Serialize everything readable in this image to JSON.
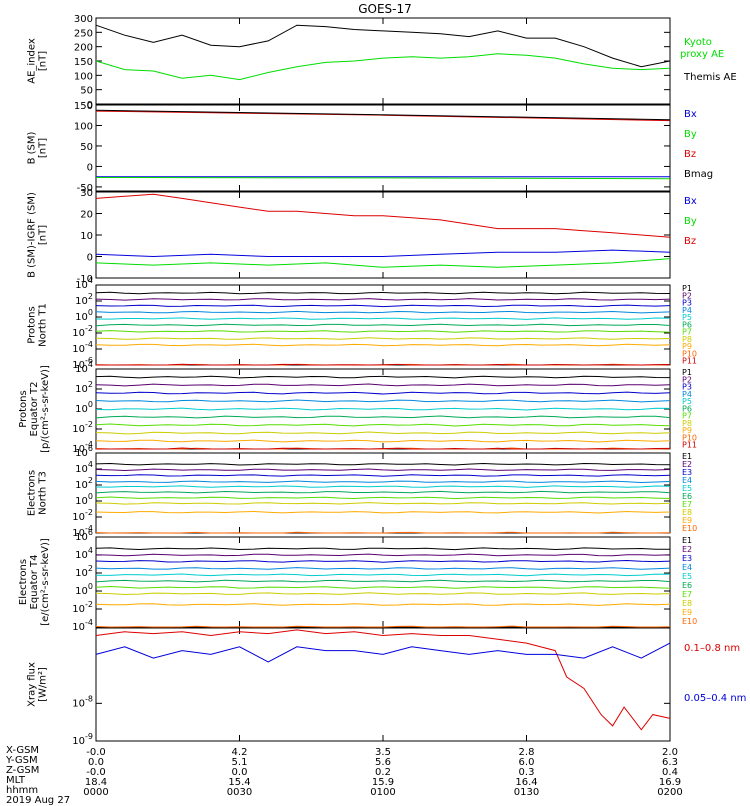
{
  "title": "GOES-17",
  "date": "2019 Aug 27",
  "colors": {
    "black": "#000000",
    "green": "#00dd00",
    "red": "#dd0000",
    "blue": "#0000dd",
    "proton": [
      "#000000",
      "#5a0070",
      "#0000cc",
      "#0088dd",
      "#00cccc",
      "#00aa55",
      "#55dd00",
      "#cccc00",
      "#ffaa00",
      "#ff6600",
      "#cc0000"
    ]
  },
  "x_axis": {
    "ticks": [
      "0000",
      "0030",
      "0100",
      "0130",
      "0200"
    ],
    "rows": [
      {
        "label": "X-GSM",
        "values": [
          "-0.0",
          "4.2",
          "3.5",
          "2.8",
          "2.0"
        ]
      },
      {
        "label": "Y-GSM",
        "values": [
          "0.0",
          "5.1",
          "5.6",
          "6.0",
          "6.3"
        ]
      },
      {
        "label": "Z-GSM",
        "values": [
          "-0.0",
          "0.0",
          "0.2",
          "0.3",
          "0.4"
        ]
      },
      {
        "label": "MLT",
        "values": [
          "18.4",
          "15.4",
          "15.9",
          "16.4",
          "16.9"
        ]
      },
      {
        "label": "hhmm",
        "values": [
          "0000",
          "0030",
          "0100",
          "0130",
          "0200"
        ]
      }
    ]
  },
  "chart_data": [
    {
      "type": "line",
      "ylabel": "AE_index\n[nT]",
      "ylim": [
        0,
        300
      ],
      "scale": "linear",
      "yticks": [
        "0",
        "50",
        "100",
        "150",
        "200",
        "250",
        "300"
      ],
      "legend": [
        "Kyoto proxy AE",
        "Themis AE"
      ],
      "series": [
        {
          "name": "Themis AE",
          "color": "black",
          "x": [
            0,
            0.05,
            0.1,
            0.15,
            0.2,
            0.25,
            0.3,
            0.35,
            0.4,
            0.45,
            0.5,
            0.55,
            0.6,
            0.65,
            0.7,
            0.75,
            0.8,
            0.85,
            0.9,
            0.95,
            1
          ],
          "values": [
            275,
            240,
            215,
            240,
            205,
            200,
            220,
            275,
            270,
            260,
            255,
            250,
            245,
            235,
            255,
            230,
            230,
            200,
            160,
            130,
            150
          ]
        },
        {
          "name": "Kyoto proxy AE",
          "color": "green",
          "x": [
            0,
            0.05,
            0.1,
            0.15,
            0.2,
            0.25,
            0.3,
            0.35,
            0.4,
            0.45,
            0.5,
            0.55,
            0.6,
            0.65,
            0.7,
            0.75,
            0.8,
            0.85,
            0.9,
            0.95,
            1
          ],
          "values": [
            150,
            120,
            115,
            90,
            100,
            85,
            110,
            130,
            145,
            150,
            160,
            165,
            160,
            165,
            175,
            170,
            160,
            140,
            125,
            120,
            125
          ]
        }
      ]
    },
    {
      "type": "line",
      "ylabel": "B (SM)\n[nT]",
      "ylim": [
        -60,
        150
      ],
      "scale": "linear",
      "yticks": [
        "-50",
        "0",
        "50",
        "100",
        "150"
      ],
      "legend": [
        "Bx",
        "By",
        "Bz",
        "Bmag"
      ],
      "series": [
        {
          "name": "Bz",
          "color": "red",
          "x": [
            0,
            0.5,
            1
          ],
          "values": [
            135,
            125,
            112
          ]
        },
        {
          "name": "Bmag",
          "color": "black",
          "x": [
            0,
            0.5,
            1
          ],
          "values": [
            137,
            126,
            114
          ]
        },
        {
          "name": "Bx",
          "color": "blue",
          "x": [
            0,
            0.5,
            1
          ],
          "values": [
            -25,
            -25,
            -25
          ]
        },
        {
          "name": "By",
          "color": "green",
          "x": [
            0,
            0.5,
            1
          ],
          "values": [
            -27,
            -28,
            -30
          ]
        }
      ]
    },
    {
      "type": "line",
      "ylabel": "B (SM)-IGRF (SM)\n[nT]",
      "ylim": [
        -10,
        30
      ],
      "scale": "linear",
      "yticks": [
        "-10",
        "0",
        "10",
        "20",
        "30"
      ],
      "legend": [
        "Bx",
        "By",
        "Bz"
      ],
      "series": [
        {
          "name": "Bz",
          "color": "red",
          "x": [
            0,
            0.05,
            0.1,
            0.15,
            0.2,
            0.25,
            0.3,
            0.35,
            0.4,
            0.45,
            0.5,
            0.55,
            0.6,
            0.65,
            0.7,
            0.75,
            0.8,
            0.85,
            0.9,
            0.95,
            1
          ],
          "values": [
            27,
            28,
            29,
            27,
            25,
            23,
            21,
            21,
            20,
            19,
            19,
            18,
            17,
            15,
            13,
            13,
            13,
            12,
            11,
            10,
            9
          ]
        },
        {
          "name": "Bx",
          "color": "blue",
          "x": [
            0,
            0.1,
            0.2,
            0.3,
            0.4,
            0.5,
            0.6,
            0.7,
            0.8,
            0.9,
            1
          ],
          "values": [
            1,
            0,
            1,
            0,
            0,
            0,
            1,
            2,
            2,
            3,
            2
          ]
        },
        {
          "name": "By",
          "color": "green",
          "x": [
            0,
            0.1,
            0.2,
            0.3,
            0.4,
            0.5,
            0.6,
            0.7,
            0.8,
            0.9,
            1
          ],
          "values": [
            -3,
            -4,
            -3,
            -4,
            -3,
            -5,
            -4,
            -5,
            -4,
            -3,
            -1
          ]
        }
      ]
    },
    {
      "type": "line",
      "ylabel": "Protons\nNorth T1",
      "ylim": [
        -6,
        4
      ],
      "scale": "log",
      "yticks": [
        "10^-6",
        "10^-4",
        "10^-2",
        "10^0",
        "10^2",
        "10^4"
      ],
      "legend": [
        "P1",
        "P2",
        "P3",
        "P4",
        "P5",
        "P6",
        "P7",
        "P8",
        "P9",
        "P10",
        "P11"
      ],
      "levels": [
        3.0,
        2.2,
        1.4,
        0.6,
        -0.2,
        -1.0,
        -1.8,
        -2.7,
        -3.5,
        -6.0,
        -6.0
      ]
    },
    {
      "type": "line",
      "ylabel": "Protons\nEquator T2\n[p/(cm²-s-sr-keV)]",
      "ylim": [
        -4,
        4
      ],
      "scale": "log",
      "yticks": [
        "10^-4",
        "10^-2",
        "10^0",
        "10^2",
        "10^4"
      ],
      "legend": [
        "P1",
        "P2",
        "P3",
        "P4",
        "P5",
        "P6",
        "P7",
        "P8",
        "P9",
        "P10",
        "P11"
      ],
      "levels": [
        3.2,
        2.4,
        1.6,
        0.8,
        0.0,
        -0.8,
        -1.6,
        -2.4,
        -3.2,
        -4.0,
        -4.0
      ]
    },
    {
      "type": "line",
      "ylabel": "Electrons\nNorth T3",
      "ylim": [
        -4,
        6
      ],
      "scale": "log",
      "yticks": [
        "10^-4",
        "10^-2",
        "10^0",
        "10^2",
        "10^4",
        "10^6"
      ],
      "legend": [
        "E1",
        "E2",
        "E3",
        "E4",
        "E5",
        "E6",
        "E7",
        "E8",
        "E9",
        "E10"
      ],
      "levels": [
        4.6,
        3.9,
        3.2,
        2.4,
        1.8,
        1.1,
        0.4,
        -0.3,
        -1.4,
        -4.0
      ]
    },
    {
      "type": "line",
      "ylabel": "Electrons\nEquator T4\n[e/(cm²-s-sr-keV)]",
      "ylim": [
        -4,
        6
      ],
      "scale": "log",
      "yticks": [
        "10^-4",
        "10^-2",
        "10^0",
        "10^2",
        "10^4",
        "10^6"
      ],
      "legend": [
        "E1",
        "E2",
        "E3",
        "E4",
        "E5",
        "E6",
        "E7",
        "E8",
        "E9",
        "E10"
      ],
      "levels": [
        4.7,
        4.0,
        3.3,
        2.5,
        1.8,
        1.1,
        0.4,
        -0.3,
        -1.5,
        -4.0
      ]
    },
    {
      "type": "line",
      "ylabel": "Xray flux\n[W/m²]",
      "ylim": [
        -9,
        -6
      ],
      "scale": "log",
      "yticks": [
        "10^-9",
        "10^-8"
      ],
      "legend": [
        "0.1–0.8 nm",
        "0.05–0.4 nm"
      ],
      "series": [
        {
          "name": "0.1–0.8 nm",
          "color": "red",
          "x": [
            0,
            0.05,
            0.1,
            0.15,
            0.2,
            0.25,
            0.3,
            0.35,
            0.4,
            0.45,
            0.5,
            0.55,
            0.6,
            0.65,
            0.7,
            0.75,
            0.8,
            0.82,
            0.85,
            0.88,
            0.9,
            0.92,
            0.95,
            0.97,
            1
          ],
          "values": [
            -6.2,
            -6.1,
            -6.15,
            -6.1,
            -6.2,
            -6.1,
            -6.15,
            -6.05,
            -6.15,
            -6.1,
            -6.2,
            -6.15,
            -6.2,
            -6.2,
            -6.3,
            -6.4,
            -6.6,
            -7.3,
            -7.6,
            -8.3,
            -8.6,
            -8.1,
            -8.7,
            -8.3,
            -8.4
          ]
        },
        {
          "name": "0.05–0.4 nm",
          "color": "blue",
          "x": [
            0,
            0.05,
            0.1,
            0.15,
            0.2,
            0.25,
            0.3,
            0.35,
            0.4,
            0.45,
            0.5,
            0.55,
            0.6,
            0.65,
            0.7,
            0.75,
            0.8,
            0.85,
            0.9,
            0.95,
            1
          ],
          "values": [
            -6.7,
            -6.5,
            -6.8,
            -6.6,
            -6.7,
            -6.5,
            -6.9,
            -6.5,
            -6.6,
            -6.6,
            -6.7,
            -6.5,
            -6.6,
            -6.7,
            -6.6,
            -6.7,
            -6.7,
            -6.8,
            -6.5,
            -6.8,
            -6.4
          ]
        }
      ]
    }
  ]
}
